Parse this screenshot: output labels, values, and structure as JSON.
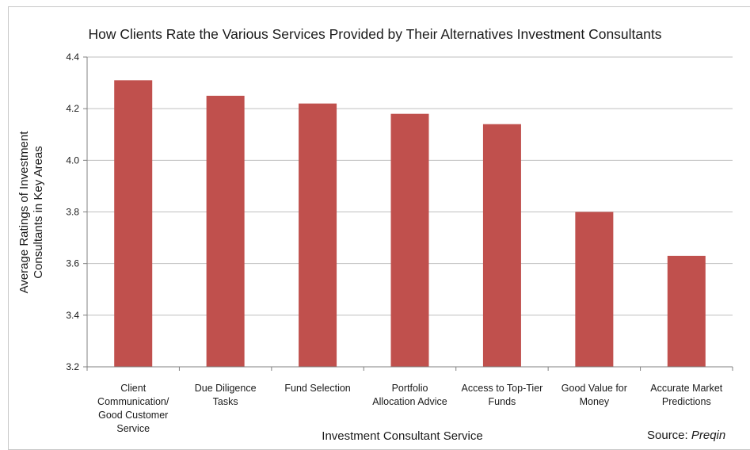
{
  "chart_data": {
    "type": "bar",
    "title": "How Clients Rate the Various Services Provided by Their Alternatives Investment Consultants",
    "xlabel": "Investment Consultant Service",
    "ylabel": [
      "Average Ratings of Investment",
      "Consultants in Key Areas"
    ],
    "categories": [
      [
        "Client",
        "Communication/",
        "Good Customer",
        "Service"
      ],
      [
        "Due Diligence",
        "Tasks"
      ],
      [
        "Fund Selection"
      ],
      [
        "Portfolio",
        "Allocation Advice"
      ],
      [
        "Access to Top-Tier",
        "Funds"
      ],
      [
        "Good Value for",
        "Money"
      ],
      [
        "Accurate Market",
        "Predictions"
      ]
    ],
    "values": [
      4.31,
      4.25,
      4.22,
      4.18,
      4.14,
      3.8,
      3.63
    ],
    "ylim": [
      3.2,
      4.4
    ],
    "yticks": [
      "3.2",
      "3.4",
      "3.6",
      "3.8",
      "4.0",
      "4.2",
      "4.4"
    ],
    "grid": true,
    "bar_color": "#c0504d",
    "grid_color": "#bfbfbf"
  },
  "source": {
    "label": "Source:",
    "name": "Preqin"
  }
}
